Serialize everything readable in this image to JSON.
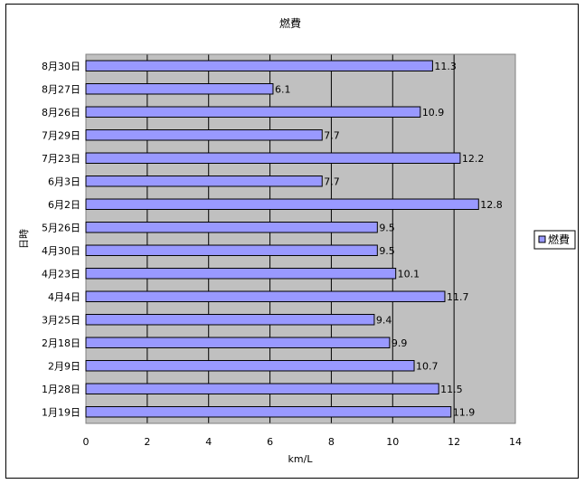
{
  "chart_data": {
    "type": "bar",
    "orientation": "horizontal",
    "title": "燃費",
    "xlabel": "km/L",
    "ylabel": "日時",
    "xlim": [
      0,
      14
    ],
    "xticks": [
      0,
      2,
      4,
      6,
      8,
      10,
      12,
      14
    ],
    "grid": true,
    "legend_position": "right",
    "categories": [
      "8月30日",
      "8月27日",
      "8月26日",
      "7月29日",
      "7月23日",
      "6月3日",
      "6月2日",
      "5月26日",
      "4月30日",
      "4月23日",
      "4月4日",
      "3月25日",
      "2月18日",
      "2月9日",
      "1月28日",
      "1月19日"
    ],
    "series": [
      {
        "name": "燃費",
        "values": [
          11.3,
          6.1,
          10.9,
          7.7,
          12.2,
          7.7,
          12.8,
          9.5,
          9.5,
          10.1,
          11.7,
          9.4,
          9.9,
          10.7,
          11.5,
          11.9
        ]
      }
    ],
    "colors": {
      "bar_fill": "#9999ff",
      "bar_stroke": "#000000",
      "plot_background": "#c0c0c0",
      "gridline": "#000000"
    }
  }
}
